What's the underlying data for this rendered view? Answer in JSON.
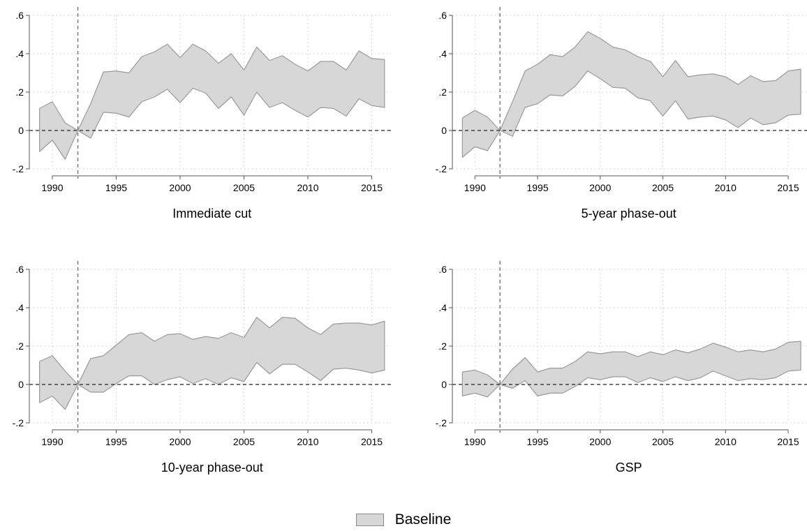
{
  "chart_data": [
    {
      "type": "area",
      "title": "Immediate cut",
      "x": [
        1989,
        1990,
        1991,
        1992,
        1993,
        1994,
        1995,
        1996,
        1997,
        1998,
        1999,
        2000,
        2001,
        2002,
        2003,
        2004,
        2005,
        2006,
        2007,
        2008,
        2009,
        2010,
        2011,
        2012,
        2013,
        2014,
        2015,
        2016
      ],
      "upper": [
        0.115,
        0.15,
        0.04,
        0,
        0.14,
        0.305,
        0.31,
        0.3,
        0.385,
        0.41,
        0.45,
        0.38,
        0.45,
        0.415,
        0.35,
        0.4,
        0.315,
        0.435,
        0.365,
        0.39,
        0.345,
        0.31,
        0.36,
        0.36,
        0.315,
        0.415,
        0.375,
        0.37
      ],
      "lower": [
        -0.11,
        -0.05,
        -0.15,
        0,
        -0.04,
        0.095,
        0.09,
        0.07,
        0.15,
        0.175,
        0.215,
        0.145,
        0.22,
        0.195,
        0.115,
        0.175,
        0.08,
        0.2,
        0.12,
        0.145,
        0.105,
        0.07,
        0.12,
        0.115,
        0.075,
        0.165,
        0.13,
        0.12
      ],
      "xticks": [
        1990,
        1995,
        2000,
        2005,
        2010,
        2015
      ],
      "yticks": [
        -0.2,
        0,
        0.2,
        0.4,
        0.6
      ],
      "ytick_labels": [
        "-.2",
        "0",
        ".2",
        ".4",
        ".6"
      ],
      "ylim": [
        -0.2,
        0.6
      ],
      "vline_x": 1992,
      "hline_y": 0
    },
    {
      "type": "area",
      "title": "5-year phase-out",
      "x": [
        1989,
        1990,
        1991,
        1992,
        1993,
        1994,
        1995,
        1996,
        1997,
        1998,
        1999,
        2000,
        2001,
        2002,
        2003,
        2004,
        2005,
        2006,
        2007,
        2008,
        2009,
        2010,
        2011,
        2012,
        2013,
        2014,
        2015,
        2016
      ],
      "upper": [
        0.065,
        0.105,
        0.07,
        0,
        0.15,
        0.31,
        0.345,
        0.395,
        0.385,
        0.435,
        0.515,
        0.48,
        0.435,
        0.42,
        0.385,
        0.36,
        0.28,
        0.365,
        0.28,
        0.29,
        0.295,
        0.28,
        0.24,
        0.285,
        0.255,
        0.26,
        0.31,
        0.32
      ],
      "lower": [
        -0.14,
        -0.085,
        -0.105,
        0,
        -0.03,
        0.12,
        0.14,
        0.185,
        0.18,
        0.23,
        0.31,
        0.27,
        0.225,
        0.22,
        0.17,
        0.155,
        0.075,
        0.155,
        0.06,
        0.07,
        0.075,
        0.055,
        0.015,
        0.065,
        0.03,
        0.04,
        0.08,
        0.085
      ],
      "xticks": [
        1990,
        1995,
        2000,
        2005,
        2010,
        2015
      ],
      "yticks": [
        -0.2,
        0,
        0.2,
        0.4,
        0.6
      ],
      "ytick_labels": [
        "-.2",
        "0",
        ".2",
        ".4",
        ".6"
      ],
      "ylim": [
        -0.2,
        0.6
      ],
      "vline_x": 1992,
      "hline_y": 0
    },
    {
      "type": "area",
      "title": "10-year phase-out",
      "x": [
        1989,
        1990,
        1991,
        1992,
        1993,
        1994,
        1995,
        1996,
        1997,
        1998,
        1999,
        2000,
        2001,
        2002,
        2003,
        2004,
        2005,
        2006,
        2007,
        2008,
        2009,
        2010,
        2011,
        2012,
        2013,
        2014,
        2015,
        2016
      ],
      "upper": [
        0.12,
        0.15,
        0.07,
        0,
        0.135,
        0.15,
        0.205,
        0.26,
        0.27,
        0.225,
        0.26,
        0.265,
        0.235,
        0.25,
        0.24,
        0.27,
        0.245,
        0.35,
        0.295,
        0.35,
        0.345,
        0.295,
        0.26,
        0.315,
        0.32,
        0.32,
        0.31,
        0.33
      ],
      "lower": [
        -0.095,
        -0.06,
        -0.13,
        0,
        -0.04,
        -0.04,
        0.005,
        0.045,
        0.045,
        0.0,
        0.025,
        0.04,
        0.005,
        0.03,
        0.0,
        0.035,
        0.015,
        0.115,
        0.055,
        0.105,
        0.105,
        0.065,
        0.02,
        0.08,
        0.085,
        0.075,
        0.06,
        0.075
      ],
      "xticks": [
        1990,
        1995,
        2000,
        2005,
        2010,
        2015
      ],
      "yticks": [
        -0.2,
        0,
        0.2,
        0.4,
        0.6
      ],
      "ytick_labels": [
        "-.2",
        "0",
        ".2",
        ".4",
        ".6"
      ],
      "ylim": [
        -0.2,
        0.6
      ],
      "vline_x": 1992,
      "hline_y": 0
    },
    {
      "type": "area",
      "title": "GSP",
      "x": [
        1989,
        1990,
        1991,
        1992,
        1993,
        1994,
        1995,
        1996,
        1997,
        1998,
        1999,
        2000,
        2001,
        2002,
        2003,
        2004,
        2005,
        2006,
        2007,
        2008,
        2009,
        2010,
        2011,
        2012,
        2013,
        2014,
        2015,
        2016
      ],
      "upper": [
        0.065,
        0.075,
        0.05,
        0,
        0.08,
        0.14,
        0.065,
        0.085,
        0.085,
        0.12,
        0.17,
        0.16,
        0.17,
        0.17,
        0.145,
        0.17,
        0.155,
        0.18,
        0.165,
        0.185,
        0.215,
        0.195,
        0.17,
        0.18,
        0.17,
        0.185,
        0.22,
        0.225
      ],
      "lower": [
        -0.06,
        -0.045,
        -0.065,
        0,
        -0.02,
        0.02,
        -0.06,
        -0.045,
        -0.045,
        -0.01,
        0.035,
        0.025,
        0.04,
        0.04,
        0.01,
        0.035,
        0.015,
        0.04,
        0.02,
        0.035,
        0.07,
        0.045,
        0.02,
        0.03,
        0.025,
        0.035,
        0.07,
        0.075
      ],
      "xticks": [
        1990,
        1995,
        2000,
        2005,
        2010,
        2015
      ],
      "yticks": [
        -0.2,
        0,
        0.2,
        0.4,
        0.6
      ],
      "ytick_labels": [
        "-.2",
        "0",
        ".2",
        ".4",
        ".6"
      ],
      "ylim": [
        -0.2,
        0.6
      ],
      "vline_x": 1992,
      "hline_y": 0
    }
  ],
  "legend": {
    "label": "Baseline",
    "placement": "bottom-center",
    "fill_color": "#d7d7d7",
    "line_color": "#8a8a8a"
  },
  "style": {
    "band_fill": "#d7d7d7",
    "band_edge": "#9a9a9a",
    "ref_line": "#222222",
    "vline_color": "#6a6a6a",
    "grid_color": "#c8c8c8",
    "grid": true
  }
}
